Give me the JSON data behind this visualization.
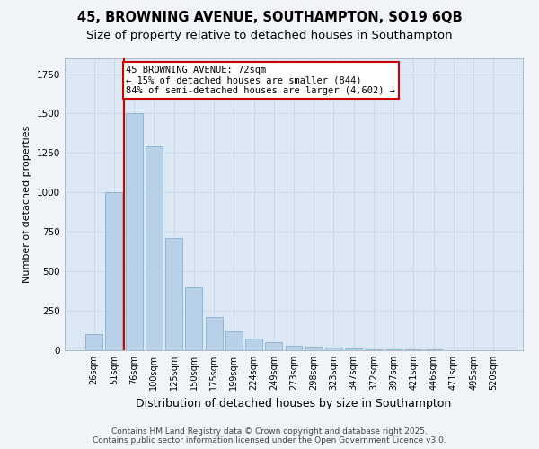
{
  "title1": "45, BROWNING AVENUE, SOUTHAMPTON, SO19 6QB",
  "title2": "Size of property relative to detached houses in Southampton",
  "xlabel": "Distribution of detached houses by size in Southampton",
  "ylabel": "Number of detached properties",
  "categories": [
    "26sqm",
    "51sqm",
    "76sqm",
    "100sqm",
    "125sqm",
    "150sqm",
    "175sqm",
    "199sqm",
    "224sqm",
    "249sqm",
    "273sqm",
    "298sqm",
    "323sqm",
    "347sqm",
    "372sqm",
    "397sqm",
    "421sqm",
    "446sqm",
    "471sqm",
    "495sqm",
    "520sqm"
  ],
  "values": [
    100,
    1000,
    1500,
    1290,
    710,
    400,
    210,
    120,
    75,
    50,
    30,
    20,
    15,
    10,
    8,
    5,
    4,
    3,
    2,
    1,
    1
  ],
  "bar_color": "#b8d0e8",
  "bar_edgecolor": "#8ab0cc",
  "property_label": "45 BROWNING AVENUE: 72sqm",
  "annotation_line1": "← 15% of detached houses are smaller (844)",
  "annotation_line2": "84% of semi-detached houses are larger (4,602) →",
  "annotation_box_color": "#ffffff",
  "annotation_box_edgecolor": "#cc0000",
  "vline_color": "#cc0000",
  "grid_color": "#c8d8e8",
  "background_color": "#dce8f4",
  "fig_background": "#f0f4f8",
  "footnote1": "Contains HM Land Registry data © Crown copyright and database right 2025.",
  "footnote2": "Contains public sector information licensed under the Open Government Licence v3.0.",
  "ylim": [
    0,
    1850
  ],
  "title_fontsize": 10.5,
  "subtitle_fontsize": 9.5,
  "ylabel_fontsize": 8,
  "xlabel_fontsize": 9,
  "tick_fontsize": 7,
  "annot_fontsize": 7.5,
  "footnote_fontsize": 6.5
}
